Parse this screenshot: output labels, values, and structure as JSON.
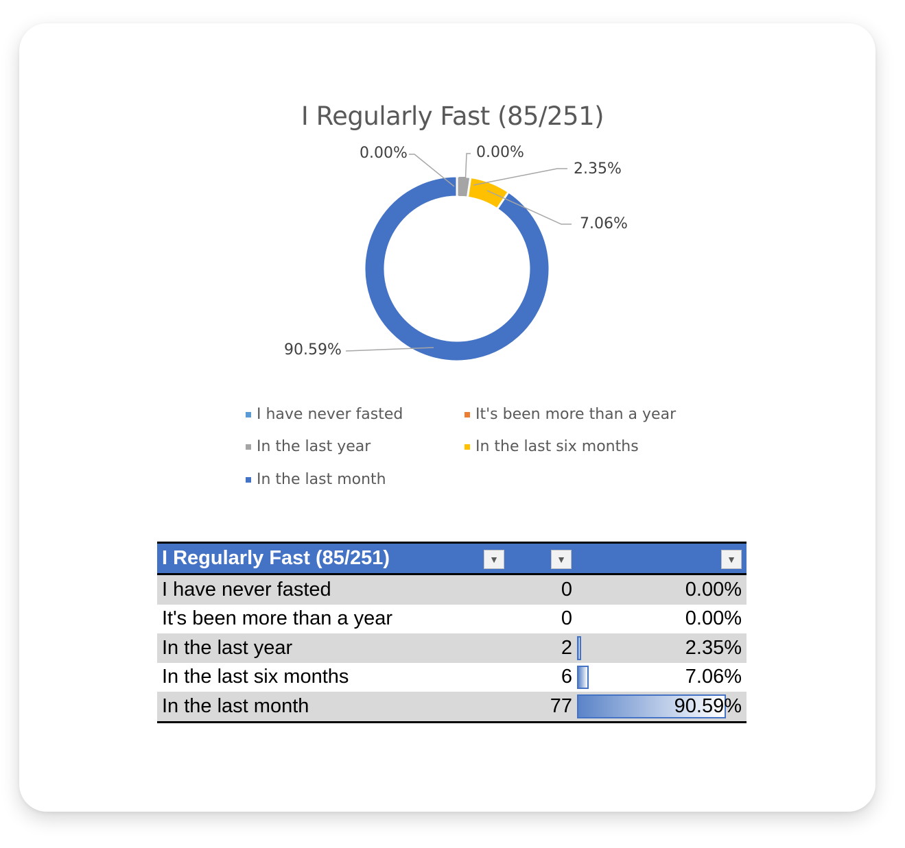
{
  "chart_data": {
    "type": "pie",
    "title": "I Regularly Fast (85/251)",
    "categories": [
      "I have never fasted",
      "It's been more than a year",
      "In the last year",
      "In the last six months",
      "In the last month"
    ],
    "values": [
      0,
      0,
      2.35,
      7.06,
      90.59
    ],
    "data_labels": [
      "0.00%",
      "0.00%",
      "2.35%",
      "7.06%",
      "90.59%"
    ],
    "colors": [
      "#5B9BD5",
      "#ED7D31",
      "#A5A5A5",
      "#FFC000",
      "#4472C4"
    ],
    "legend_placement": "bottom",
    "donut": true
  },
  "table": {
    "header": "I Regularly Fast (85/251)",
    "rows": [
      {
        "label": "I have never fasted",
        "count": "0",
        "pct": "0.00%",
        "fraction": 0.0
      },
      {
        "label": "It's been more than a year",
        "count": "0",
        "pct": "0.00%",
        "fraction": 0.0
      },
      {
        "label": "In the last year",
        "count": "2",
        "pct": "2.35%",
        "fraction": 0.0235
      },
      {
        "label": "In the last six months",
        "count": "6",
        "pct": "7.06%",
        "fraction": 0.0706
      },
      {
        "label": "In the last month",
        "count": "77",
        "pct": "90.59%",
        "fraction": 0.9059
      }
    ],
    "filter_icon": "dropdown-arrow-icon"
  }
}
